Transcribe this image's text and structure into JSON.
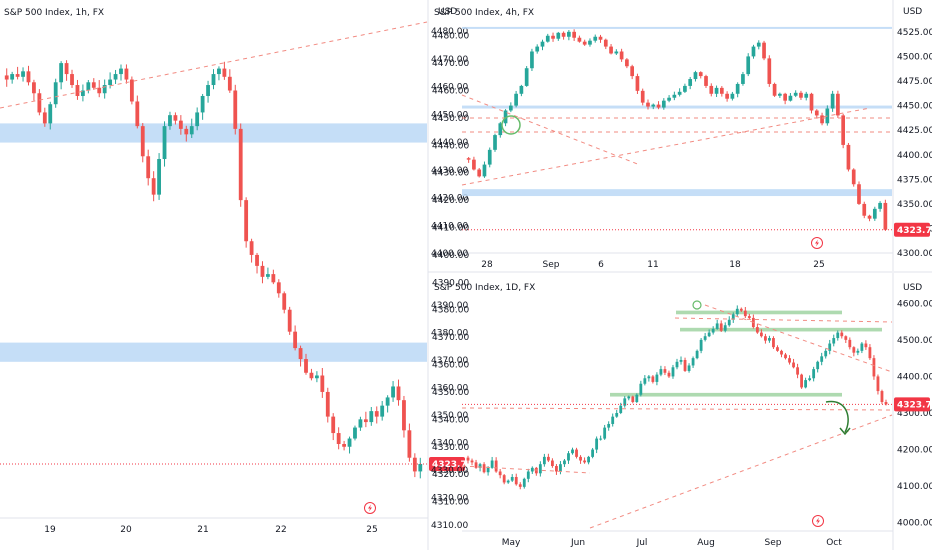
{
  "colors": {
    "up": "#26a69a",
    "down": "#ef5350",
    "zone": "#bbd8f6",
    "green_zone": "#a5d6a7",
    "dash": "#f28b82",
    "price_tag": "#f23645",
    "axis": "#e0e3eb"
  },
  "chart_data": [
    {
      "type": "candlestick",
      "title": "S&P 500 Index, 1h, FX",
      "currency": "USD",
      "last_price": "4323.71",
      "ylim": [
        4304,
        4485
      ],
      "yticks": [
        "4480.00",
        "4470.00",
        "4460.00",
        "4450.00",
        "4440.00",
        "4430.00",
        "4420.00",
        "4410.00",
        "4400.00",
        "4390.00",
        "4380.00",
        "4370.00",
        "4360.00",
        "4350.00",
        "4340.00",
        "4330.00",
        "4320.00",
        "4310.00"
      ],
      "x_labels": [
        "19",
        "20",
        "21",
        "22",
        "25"
      ],
      "close_path": [
        4464,
        4466,
        4465,
        4467,
        4463,
        4459,
        4452,
        4448,
        4455,
        4463,
        4470,
        4466,
        4462,
        4458,
        4460,
        4463,
        4461,
        4459,
        4462,
        4464,
        4466,
        4468,
        4464,
        4456,
        4447,
        4436,
        4428,
        4422,
        4435,
        4447,
        4451,
        4449,
        4446,
        4444,
        4447,
        4452,
        4458,
        4462,
        4466,
        4468,
        4465,
        4460,
        4446,
        4420,
        4405,
        4400,
        4396,
        4392,
        4393,
        4390,
        4386,
        4380,
        4372,
        4366,
        4362,
        4357,
        4355,
        4356,
        4350,
        4341,
        4335,
        4331,
        4330,
        4333,
        4337,
        4340,
        4339,
        4343,
        4341,
        4345,
        4348,
        4352,
        4347,
        4336,
        4326,
        4321,
        4323.71
      ]
    },
    {
      "type": "candlestick",
      "title": "S&P 500 Index, 4h, FX",
      "currency": "USD",
      "last_price": "4323.71",
      "ylim": [
        4295,
        4535
      ],
      "yticks": [
        "4525.00",
        "4500.00",
        "4475.00",
        "4450.00",
        "4425.00",
        "4400.00",
        "4375.00",
        "4350.00",
        "4325.00",
        "4300.00"
      ],
      "left_yticks": [
        "4480.00",
        "4470.00",
        "4460.00",
        "4450.00",
        "4440.00",
        "4430.00",
        "4420.00",
        "4410.00",
        "4400.00"
      ],
      "x_labels": [
        "28",
        "Sep",
        "6",
        "11",
        "18",
        "25"
      ],
      "close_path": [
        4395,
        4385,
        4378,
        4390,
        4405,
        4420,
        4432,
        4445,
        4450,
        4462,
        4470,
        4488,
        4505,
        4510,
        4515,
        4521,
        4518,
        4524,
        4520,
        4525,
        4519,
        4515,
        4512,
        4516,
        4520,
        4517,
        4510,
        4503,
        4505,
        4497,
        4490,
        4480,
        4465,
        4453,
        4449,
        4451,
        4448,
        4455,
        4458,
        4461,
        4464,
        4470,
        4477,
        4484,
        4480,
        4470,
        4462,
        4468,
        4462,
        4457,
        4462,
        4472,
        4482,
        4500,
        4510,
        4514,
        4498,
        4472,
        4460,
        4462,
        4455,
        4460,
        4463,
        4458,
        4462,
        4445,
        4440,
        4432,
        4447,
        4462,
        4440,
        4410,
        4385,
        4370,
        4350,
        4338,
        4335,
        4345,
        4351,
        4323.71
      ]
    },
    {
      "type": "candlestick",
      "title": "S&P 500 Index, 1D, FX",
      "currency": "USD",
      "last_price": "4323.71",
      "ylim": [
        3980,
        4620
      ],
      "yticks": [
        "4600.00",
        "4500.00",
        "4400.00",
        "4300.00",
        "4200.00",
        "4100.00",
        "4000.00"
      ],
      "left_yticks": [
        "4390.00",
        "4380.00",
        "4370.00",
        "4360.00",
        "4350.00",
        "4340.00",
        "4330.00",
        "4320.00",
        "4310.00"
      ],
      "x_labels": [
        "May",
        "Jun",
        "Jul",
        "Aug",
        "Sep",
        "Oct"
      ],
      "close_path": [
        4170,
        4165,
        4150,
        4160,
        4138,
        4150,
        4170,
        4140,
        4130,
        4110,
        4115,
        4125,
        4105,
        4098,
        4120,
        4140,
        4150,
        4135,
        4160,
        4180,
        4170,
        4155,
        4140,
        4160,
        4170,
        4190,
        4200,
        4180,
        4170,
        4165,
        4180,
        4200,
        4230,
        4230,
        4260,
        4270,
        4290,
        4300,
        4320,
        4340,
        4345,
        4330,
        4350,
        4380,
        4395,
        4400,
        4385,
        4405,
        4420,
        4410,
        4400,
        4425,
        4440,
        4445,
        4415,
        4430,
        4450,
        4470,
        4500,
        4510,
        4520,
        4530,
        4545,
        4525,
        4540,
        4555,
        4570,
        4585,
        4580,
        4565,
        4560,
        4535,
        4520,
        4510,
        4498,
        4505,
        4480,
        4470,
        4460,
        4450,
        4438,
        4425,
        4405,
        4370,
        4390,
        4395,
        4420,
        4440,
        4455,
        4470,
        4490,
        4505,
        4520,
        4510,
        4500,
        4480,
        4465,
        4470,
        4490,
        4480,
        4450,
        4400,
        4360,
        4330,
        4323.71
      ]
    }
  ],
  "markers": {
    "event_icon": "lightning-bolt-icon"
  }
}
